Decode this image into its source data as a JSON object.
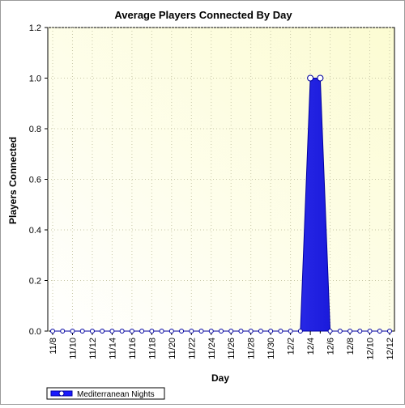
{
  "chart_data": {
    "type": "area",
    "title": "Average Players Connected By Day",
    "xlabel": "Day",
    "ylabel": "Players Connected",
    "ylim": [
      0,
      1.2
    ],
    "yticks": [
      "0.0",
      "0.2",
      "0.4",
      "0.6",
      "0.8",
      "1.0",
      "1.2"
    ],
    "ytick_values": [
      0,
      0.2,
      0.4,
      0.6,
      0.8,
      1.0,
      1.2
    ],
    "x": [
      "11/8",
      "11/9",
      "11/10",
      "11/11",
      "11/12",
      "11/13",
      "11/14",
      "11/15",
      "11/16",
      "11/17",
      "11/18",
      "11/19",
      "11/20",
      "11/21",
      "11/22",
      "11/23",
      "11/24",
      "11/25",
      "11/26",
      "11/27",
      "11/28",
      "11/29",
      "11/30",
      "12/1",
      "12/2",
      "12/3",
      "12/4",
      "12/5",
      "12/6",
      "12/7",
      "12/8",
      "12/9",
      "12/10",
      "12/11",
      "12/12"
    ],
    "xticks": [
      "11/8",
      "11/10",
      "11/12",
      "11/14",
      "11/16",
      "11/18",
      "11/20",
      "11/22",
      "11/24",
      "11/26",
      "11/28",
      "11/30",
      "12/2",
      "12/4",
      "12/6",
      "12/8",
      "12/10",
      "12/12"
    ],
    "series": [
      {
        "name": "Mediterranean Nights",
        "values": [
          0,
          0,
          0,
          0,
          0,
          0,
          0,
          0,
          0,
          0,
          0,
          0,
          0,
          0,
          0,
          0,
          0,
          0,
          0,
          0,
          0,
          0,
          0,
          0,
          0,
          0,
          1,
          1,
          0,
          0,
          0,
          0,
          0,
          0,
          0
        ]
      }
    ],
    "grid": true,
    "legend": "bottom-left",
    "colors": {
      "series_fill": "#1a1aff",
      "series_edge": "#0000a0",
      "marker_fill": "#ffffff",
      "plot_bg_light": "#ffffff",
      "plot_bg_warm": "#fcfcd2",
      "grid": "#c8c8a8"
    }
  }
}
